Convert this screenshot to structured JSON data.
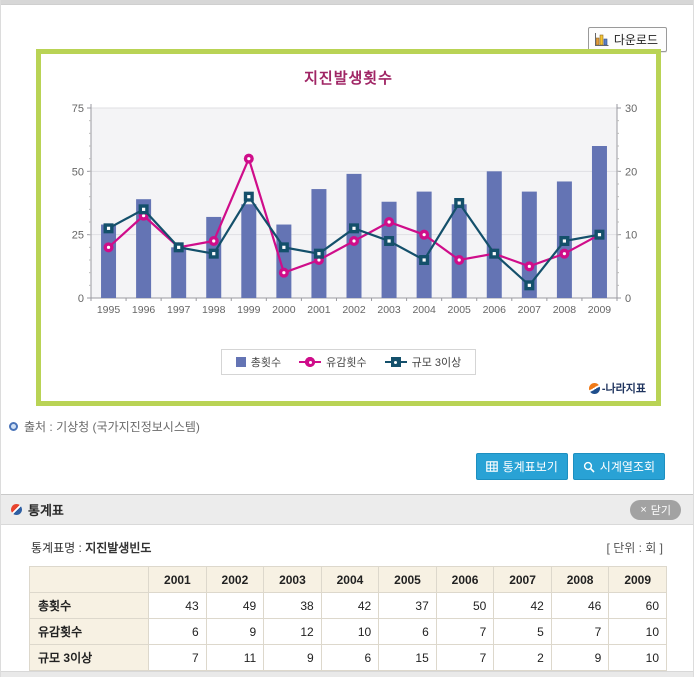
{
  "toolbar": {
    "download_label": "다운로드"
  },
  "chart": {
    "title": "지진발생횟수",
    "legend": [
      {
        "label": "총횟수",
        "marker": "bar"
      },
      {
        "label": "유감횟수",
        "marker": "circle"
      },
      {
        "label": "규모 3이상",
        "marker": "square"
      }
    ],
    "watermark": "-나라지표"
  },
  "chart_data": {
    "type": "bar+line",
    "categories": [
      "1995",
      "1996",
      "1997",
      "1998",
      "1999",
      "2000",
      "2001",
      "2002",
      "2003",
      "2004",
      "2005",
      "2006",
      "2007",
      "2008",
      "2009"
    ],
    "series": [
      {
        "name": "총횟수",
        "type": "bar",
        "axis": "left",
        "color": "#6474b4",
        "values": [
          29,
          39,
          20,
          32,
          37,
          29,
          43,
          49,
          38,
          42,
          37,
          50,
          42,
          46,
          60
        ]
      },
      {
        "name": "유감횟수",
        "type": "line",
        "axis": "right",
        "color": "#cf0d8a",
        "marker": "circle",
        "values": [
          8,
          13,
          8,
          9,
          22,
          4,
          6,
          9,
          12,
          10,
          6,
          7,
          5,
          7,
          10
        ]
      },
      {
        "name": "규모 3이상",
        "type": "line",
        "axis": "right",
        "color": "#14506b",
        "marker": "square",
        "values": [
          11,
          14,
          8,
          7,
          16,
          8,
          7,
          11,
          9,
          6,
          15,
          7,
          2,
          9,
          10
        ]
      }
    ],
    "left_axis": {
      "ticks": [
        0,
        25,
        50,
        75
      ],
      "ylim": [
        0,
        75
      ],
      "minor_step": 5
    },
    "right_axis": {
      "ticks": [
        0,
        10,
        20,
        30
      ],
      "ylim": [
        0,
        30
      ],
      "minor_step": 2
    },
    "grid": true,
    "legend_position": "bottom",
    "plot_bg": "#f4f4f6",
    "grid_color": "#dfdfe3",
    "axis_color": "#9a9aa0",
    "tick_label_color": "#666"
  },
  "source": {
    "text": "출처 : 기상청 (국가지진정보시스템)"
  },
  "actions": {
    "stats_table_label": "통계표보기",
    "timeseries_label": "시계열조회"
  },
  "stats_section": {
    "header": "통계표",
    "close_label": "닫기",
    "close_x": "×",
    "table_name_label": "통계표명 :",
    "table_name": "지진발생빈도",
    "unit_label": "[ 단위 : 회 ]",
    "table": {
      "col_headers": [
        "2001",
        "2002",
        "2003",
        "2004",
        "2005",
        "2006",
        "2007",
        "2008",
        "2009"
      ],
      "rows": [
        {
          "label": "총횟수",
          "values": [
            43,
            49,
            38,
            42,
            37,
            50,
            42,
            46,
            60
          ]
        },
        {
          "label": "유감횟수",
          "values": [
            6,
            9,
            12,
            10,
            6,
            7,
            5,
            7,
            10
          ]
        },
        {
          "label": "규모 3이상",
          "values": [
            7,
            11,
            9,
            6,
            15,
            7,
            2,
            9,
            10
          ]
        }
      ]
    }
  }
}
